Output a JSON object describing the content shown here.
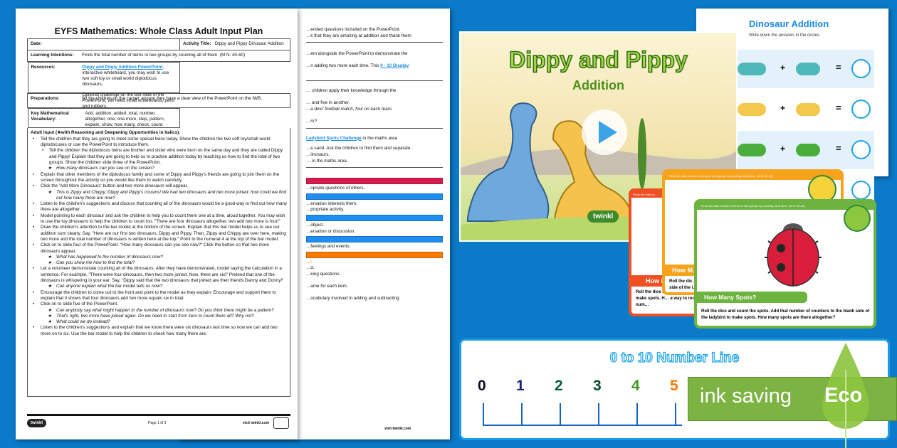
{
  "plan": {
    "title": "EYFS Mathematics: Whole Class Adult Input Plan",
    "date_label": "Date:",
    "activity_label": "Activity Title:",
    "activity_value": "Dippy and Pippy Dinosaur Addition",
    "intentions_label": "Learning Intentions:",
    "intentions_value": "Finds the total number of items in two groups by counting all of them. (M N: 40-60)",
    "resources_label": "Resources:",
    "resources_link": "Dippy and Pippy Addition PowerPoint",
    "resources_text": ", interactive whiteboard, you may wish to use two soft toy or small world diplodocus dinosaurs.",
    "resources_text2": "Optional challenge on the last slide of the PowerPoint, will need small whiteboards, pens and rubbers.",
    "preparations_label": "Preparations:",
    "preparations_value": "Sit the children on the carpet, ensure they have a clear view of the PowerPoint on the IWB.",
    "vocab_label": "Key Mathematical Vocabulary:",
    "vocab_value": "Add, addition, added, total, number, altogether, one, one more, step, pattern, explain, show, how many, check, count.",
    "adult_input_heading": "Adult Input (★with Reasoning and Deepening Opportunities in Italics):",
    "items": [
      {
        "type": "bullet",
        "text": "Tell the children that they are going to meet some special twins today. Show the children the two soft toy/small world diplodocuses or use the PowerPoint to introduce them."
      },
      {
        "type": "sub",
        "text": "Tell the children the diplodocus twins are brother and sister who were born on the same day and they are called Dippy and Pippy! Explain that they are going to help us to practise addition today by teaching us how to find the total of two groups. Show the children slide three of the PowerPoint."
      },
      {
        "type": "star",
        "text": "How many dinosaurs can you see on the screen?"
      },
      {
        "type": "bullet",
        "text": "Explain that other members of the diplodocus family and some of Dippy and Pippy's friends are going to join them on the screen throughout the activity so you would like them to watch carefully."
      },
      {
        "type": "bullet",
        "text": "Click the 'Add More Dinosaurs' button and two more dinosaurs will appear."
      },
      {
        "type": "star",
        "text": "This is Zippy and Chippy, Dippy and Pippy's cousins! We had two dinosaurs and two more joined, how could we find out how many there are now?"
      },
      {
        "type": "bullet",
        "text": "Listen to the children's suggestions and discuss that counting all of the dinosaurs would be a good way to find out how many there are altogether."
      },
      {
        "type": "bullet",
        "text": "Model pointing to each dinosaur and ask the children to help you to count them one at a time, aloud together. You may wish to use the toy dinosaurs to help the children to count too. \"There are four dinosaurs altogether, two add two more is four!\""
      },
      {
        "type": "bullet",
        "text": "Draw the children's attention to the bar model at the bottom of the screen. Explain that this bar model helps us to see our addition sum clearly. Say, \"Here are our first two dinosaurs, Dippy and Pippy. Then, Zippy and Chippy are over here, making two more and the total number of dinosaurs is written here at the top.\" Point to the numeral 4 at the top of the bar model."
      },
      {
        "type": "bullet",
        "text": "Click on to slide four of the PowerPoint. \"How many dinosaurs can you see now?\" Click the button so that two more dinosaurs appear."
      },
      {
        "type": "star",
        "text": "What has happened to the number of dinosaurs now?"
      },
      {
        "type": "star",
        "text": "Can you show me how to find the total?"
      },
      {
        "type": "bullet",
        "text": "Let a volunteer demonstrate counting all of the dinosaurs. After they have demonstrated, model saying the calculation in a sentence. For example, \"There were four dinosaurs, then two more joined. Now, there are six!\" Pretend that one of the dinosaurs is whispering in your ear. Say, \"Dippy said that the two dinosaurs that joined are their friends Danny and Donny!\""
      },
      {
        "type": "star",
        "text": "Can anyone explain what the bar model tells us now?"
      },
      {
        "type": "bullet",
        "text": "Encourage the children to come out to the front and point to the model as they explain. Encourage and support them to explain that it shows that four dinosaurs add two more equals six in total."
      },
      {
        "type": "bullet",
        "text": "Click on to slide five of the PowerPoint."
      },
      {
        "type": "star",
        "text": "Can anybody say what might happen to the number of dinosaurs now? Do you think there might be a pattern?"
      },
      {
        "type": "star",
        "text": "That's right, two more have joined again. Do we need to start from zero to count them all? Why not?"
      },
      {
        "type": "star",
        "text": "What could we do instead?"
      },
      {
        "type": "bullet",
        "text": "Listen to the children's suggestions and explain that we know there were six dinosaurs last time so now we can add two more on to six. Use the bar model to help the children to check how many there are."
      }
    ],
    "page_label": "Page 1 of 3",
    "visit": "visit twinkl.com",
    "logo": "twinkl foundation"
  },
  "page2": {
    "lines1": [
      "…ended questions included on the PowerPoint.",
      "…k that they are amazing at addition and thank them"
    ],
    "lines2": [
      "…em alongside the PowerPoint to demonstrate the",
      "…n adding two more each time. This "
    ],
    "link2": "0 - 10 Display",
    "lines3": [
      "… children apply their knowledge through the",
      "",
      "… and five in another.",
      "…a dino' football match, four on each team.",
      "",
      "…m?"
    ],
    "link4": "Ladybird Spots Challenge",
    "line4a": " in the maths area",
    "lines4": [
      "…e sand. Ask the children to find them and separate",
      "…linosaurs.",
      "… in the maths area."
    ],
    "bands": [
      {
        "color": "#d81b4f",
        "text": ""
      },
      {
        "color": "#fff",
        "text": "…opriate questions of others."
      },
      {
        "color": "#1e8ff0",
        "text": ""
      },
      {
        "color": "#fff",
        "text": "…ersation interests them.|…propriate activity."
      },
      {
        "color": "#1e8ff0",
        "text": ""
      },
      {
        "color": "#fff",
        "text": "…object.|…ersation or discussion."
      },
      {
        "color": "#1e8ff0",
        "text": ""
      },
      {
        "color": "#fff",
        "text": "…feelings and events."
      },
      {
        "color": "#ff7a00",
        "text": ""
      }
    ],
    "lines5": [
      "…:",
      "…d.",
      "…king questions.",
      "",
      "…ame for each item.",
      "",
      "…ocabulary involved in adding and subtracting"
    ],
    "visit": "visit twinkl.com"
  },
  "slide": {
    "title": "Dippy and Pippy",
    "subtitle": "Addition",
    "logo": "twinkl",
    "play_icon": "play-icon"
  },
  "worksheet": {
    "title": "Dinosaur Addition",
    "instruction": "Write down the answers in the circles.",
    "plus": "+",
    "equals": "="
  },
  "cards": {
    "objective": "Finds the total number of items in two groups by counting all of them. (M N: 40-60)",
    "objective_short": "Finds the total nu…",
    "heading": "How Many Spots?",
    "heading_short": "How M…",
    "body": "Roll the dice and count the spots. Add that number of counters to the blank side of the ladybird to make spots. How many spots are there altogether?",
    "red_body": "Roll the dice and add th… ladybird to make spots. H… a way to record your num…",
    "orange_body": "Roll the dic… side of the l…",
    "colors": {
      "red": "#f04e23",
      "orange": "#f7a31c",
      "green": "#6db33f"
    }
  },
  "number_line": {
    "title": "0 to 10 Number Line",
    "numbers": [
      "0",
      "1",
      "2",
      "3",
      "4",
      "5"
    ],
    "colors": [
      "#0a0a2a",
      "#1a237e",
      "#0d5e3a",
      "#0b4d2a",
      "#3a9a1a",
      "#f57c00"
    ]
  },
  "eco": {
    "label": "ink saving",
    "badge": "Eco",
    "color": "#7cb342"
  }
}
